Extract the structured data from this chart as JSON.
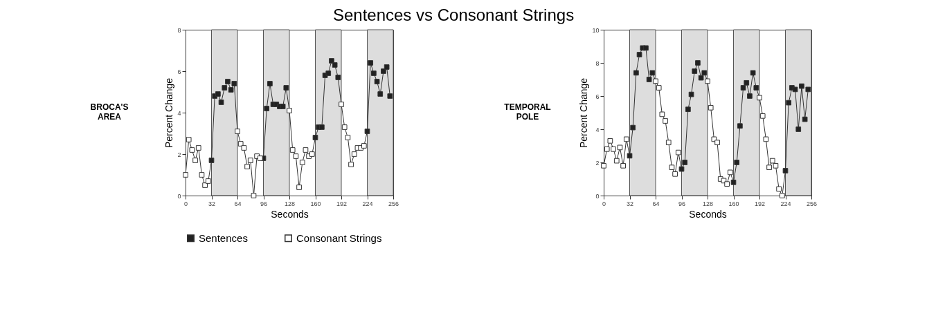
{
  "chart_data": [
    {
      "type": "line",
      "title": "Sentences vs Consonant Strings",
      "xlabel": "Seconds",
      "ylabel": "Percent Change",
      "annotations": [
        "BROCA'S AREA"
      ],
      "x": [
        0,
        4,
        8,
        12,
        16,
        20,
        24,
        28,
        32,
        36,
        40,
        44,
        48,
        52,
        56,
        60,
        64,
        68,
        72,
        76,
        80,
        84,
        88,
        92,
        96,
        100,
        104,
        108,
        112,
        116,
        120,
        124,
        128,
        132,
        136,
        140,
        144,
        148,
        152,
        156,
        160,
        164,
        168,
        172,
        176,
        180,
        184,
        188,
        192,
        196,
        200,
        204,
        208,
        212,
        216,
        220,
        224,
        228,
        232,
        236,
        240,
        244,
        248,
        252
      ],
      "series": [
        {
          "color": "#333333",
          "values": [
            1.0,
            2.7,
            2.2,
            1.7,
            2.3,
            1.0,
            0.5,
            0.7,
            1.7,
            4.8,
            4.9,
            4.5,
            5.2,
            5.5,
            5.1,
            5.4,
            3.1,
            2.5,
            2.3,
            1.4,
            1.7,
            0.0,
            1.9,
            1.8,
            1.8,
            4.2,
            5.4,
            4.4,
            4.4,
            4.3,
            4.3,
            5.2,
            4.1,
            2.2,
            1.9,
            0.4,
            1.6,
            2.2,
            1.9,
            2.0,
            2.8,
            3.3,
            3.3,
            5.8,
            5.9,
            6.5,
            6.3,
            5.7,
            4.4,
            3.3,
            2.8,
            1.5,
            2.0,
            2.3,
            2.3,
            2.4,
            3.1,
            6.4,
            5.9,
            5.5,
            4.9,
            6.0,
            6.2,
            4.8
          ]
        },
        {
          "type": "scatter",
          "marker": "square",
          "name": "Sentences",
          "color": "#222222",
          "values": [
            null,
            null,
            null,
            null,
            null,
            null,
            null,
            null,
            1.7,
            4.8,
            4.9,
            4.5,
            5.2,
            5.5,
            5.1,
            5.4,
            null,
            null,
            null,
            null,
            null,
            null,
            null,
            null,
            1.8,
            4.2,
            5.4,
            4.4,
            4.4,
            4.3,
            4.3,
            5.2,
            null,
            null,
            null,
            null,
            null,
            null,
            null,
            null,
            2.8,
            3.3,
            3.3,
            5.8,
            5.9,
            6.5,
            6.3,
            5.7,
            null,
            null,
            null,
            null,
            null,
            null,
            null,
            null,
            3.1,
            6.4,
            5.9,
            5.5,
            4.9,
            6.0,
            6.2,
            4.8
          ]
        },
        {
          "type": "scatter",
          "marker": "square",
          "name": "Consonant Strings",
          "color": "#ffffff",
          "values": [
            1.0,
            2.7,
            2.2,
            1.7,
            2.3,
            1.0,
            0.5,
            0.7,
            null,
            null,
            null,
            null,
            null,
            null,
            null,
            null,
            3.1,
            2.5,
            2.3,
            1.4,
            1.7,
            0.0,
            1.9,
            1.8,
            null,
            null,
            null,
            null,
            null,
            null,
            null,
            null,
            4.1,
            2.2,
            1.9,
            0.4,
            1.6,
            2.2,
            1.9,
            2.0,
            null,
            null,
            null,
            null,
            null,
            null,
            null,
            null,
            4.4,
            3.3,
            2.8,
            1.5,
            2.0,
            2.3,
            2.3,
            2.4,
            null,
            null,
            null,
            null,
            null,
            null,
            null,
            null
          ]
        }
      ],
      "bands": [
        {
          "axis": "x",
          "from": 32,
          "to": 64,
          "color": "#dddddd"
        },
        {
          "axis": "x",
          "from": 96,
          "to": 128,
          "color": "#dddddd"
        },
        {
          "axis": "x",
          "from": 160,
          "to": 192,
          "color": "#dddddd"
        },
        {
          "axis": "x",
          "from": 224,
          "to": 256,
          "color": "#dddddd"
        }
      ],
      "xlim": [
        0,
        256
      ],
      "xticks": [
        0,
        32,
        64,
        96,
        128,
        160,
        192,
        224,
        256
      ],
      "ylim": [
        0,
        8
      ],
      "yticks": [
        0,
        2,
        4,
        6,
        8
      ],
      "grid": false,
      "legend": "bottom"
    },
    {
      "type": "line",
      "xlabel": "Seconds",
      "ylabel": "Percent Change",
      "annotations": [
        "TEMPORAL POLE"
      ],
      "x": [
        0,
        4,
        8,
        12,
        16,
        20,
        24,
        28,
        32,
        36,
        40,
        44,
        48,
        52,
        56,
        60,
        64,
        68,
        72,
        76,
        80,
        84,
        88,
        92,
        96,
        100,
        104,
        108,
        112,
        116,
        120,
        124,
        128,
        132,
        136,
        140,
        144,
        148,
        152,
        156,
        160,
        164,
        168,
        172,
        176,
        180,
        184,
        188,
        192,
        196,
        200,
        204,
        208,
        212,
        216,
        220,
        224,
        228,
        232,
        236,
        240,
        244,
        248,
        252
      ],
      "series": [
        {
          "color": "#333333",
          "values": [
            1.8,
            2.8,
            3.3,
            2.8,
            2.1,
            2.9,
            1.8,
            3.4,
            2.4,
            4.1,
            7.4,
            8.5,
            8.9,
            8.9,
            7.0,
            7.4,
            6.9,
            6.5,
            4.9,
            4.5,
            3.2,
            1.7,
            1.3,
            2.6,
            1.6,
            2.0,
            5.2,
            6.1,
            7.5,
            8.0,
            7.1,
            7.4,
            6.9,
            5.3,
            3.4,
            3.2,
            1.0,
            0.9,
            0.7,
            1.4,
            0.8,
            2.0,
            4.2,
            6.5,
            6.8,
            6.0,
            7.4,
            6.5,
            5.9,
            4.8,
            3.4,
            1.7,
            2.1,
            1.8,
            0.4,
            0.0,
            1.5,
            5.6,
            6.5,
            6.4,
            4.0,
            6.6,
            4.6,
            6.4
          ]
        },
        {
          "type": "scatter",
          "marker": "square",
          "color": "#222222",
          "values": [
            null,
            null,
            null,
            null,
            null,
            null,
            null,
            null,
            2.4,
            4.1,
            7.4,
            8.5,
            8.9,
            8.9,
            7.0,
            7.4,
            null,
            null,
            null,
            null,
            null,
            null,
            null,
            null,
            1.6,
            2.0,
            5.2,
            6.1,
            7.5,
            8.0,
            7.1,
            7.4,
            null,
            null,
            null,
            null,
            null,
            null,
            null,
            null,
            0.8,
            2.0,
            4.2,
            6.5,
            6.8,
            6.0,
            7.4,
            6.5,
            null,
            null,
            null,
            null,
            null,
            null,
            null,
            null,
            1.5,
            5.6,
            6.5,
            6.4,
            4.0,
            6.6,
            4.6,
            6.4
          ]
        },
        {
          "type": "scatter",
          "marker": "square",
          "color": "#ffffff",
          "values": [
            1.8,
            2.8,
            3.3,
            2.8,
            2.1,
            2.9,
            1.8,
            3.4,
            null,
            null,
            null,
            null,
            null,
            null,
            null,
            null,
            6.9,
            6.5,
            4.9,
            4.5,
            3.2,
            1.7,
            1.3,
            2.6,
            null,
            null,
            null,
            null,
            null,
            null,
            null,
            null,
            6.9,
            5.3,
            3.4,
            3.2,
            1.0,
            0.9,
            0.7,
            1.4,
            null,
            null,
            null,
            null,
            null,
            null,
            null,
            null,
            5.9,
            4.8,
            3.4,
            1.7,
            2.1,
            1.8,
            0.4,
            0.0,
            null,
            null,
            null,
            null,
            null,
            null,
            null,
            null
          ]
        }
      ],
      "bands": [
        {
          "axis": "x",
          "from": 32,
          "to": 64,
          "color": "#dddddd"
        },
        {
          "axis": "x",
          "from": 96,
          "to": 128,
          "color": "#dddddd"
        },
        {
          "axis": "x",
          "from": 160,
          "to": 192,
          "color": "#dddddd"
        },
        {
          "axis": "x",
          "from": 224,
          "to": 256,
          "color": "#dddddd"
        }
      ],
      "xlim": [
        0,
        256
      ],
      "xticks": [
        0,
        32,
        64,
        96,
        128,
        160,
        192,
        224,
        256
      ],
      "ylim": [
        0,
        10
      ],
      "yticks": [
        0,
        2,
        4,
        6,
        8,
        10
      ],
      "grid": false
    }
  ]
}
